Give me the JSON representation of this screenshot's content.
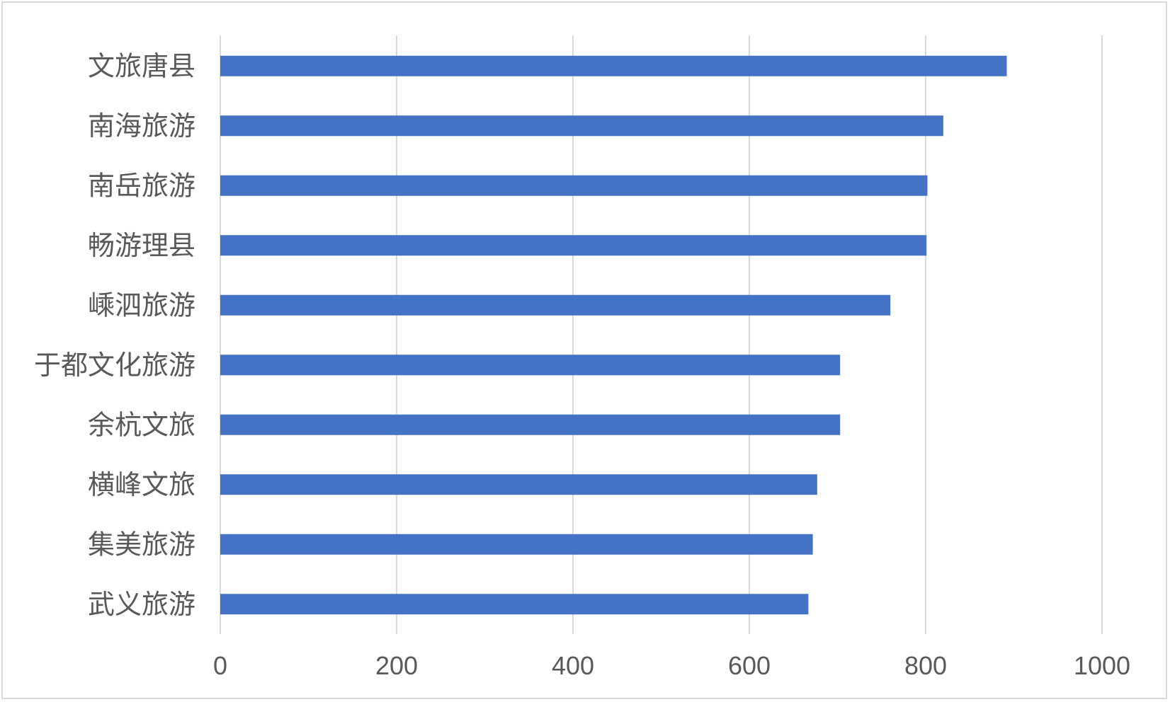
{
  "chart_data": {
    "type": "bar",
    "orientation": "horizontal",
    "categories": [
      "文旅唐县",
      "南海旅游",
      "南岳旅游",
      "畅游理县",
      "嵊泗旅游",
      "于都文化旅游",
      "余杭文旅",
      "横峰文旅",
      "集美旅游",
      "武义旅游"
    ],
    "values": [
      892,
      820,
      802,
      801,
      760,
      703,
      703,
      677,
      672,
      667
    ],
    "xlim": [
      0,
      1000
    ],
    "xticks": [
      "0",
      "200",
      "400",
      "600",
      "800",
      "1000"
    ],
    "grid": true,
    "bar_color": "#4472C4",
    "grid_color": "#d9d9d9",
    "title": "",
    "xlabel": "",
    "ylabel": ""
  }
}
